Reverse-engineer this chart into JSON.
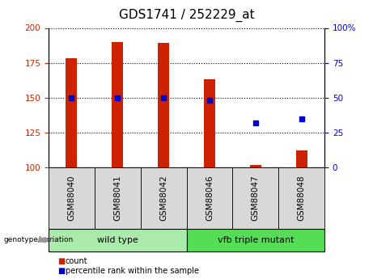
{
  "title": "GDS1741 / 252229_at",
  "categories": [
    "GSM88040",
    "GSM88041",
    "GSM88042",
    "GSM88046",
    "GSM88047",
    "GSM88048"
  ],
  "count_values": [
    178,
    190,
    189,
    163,
    102,
    112
  ],
  "percentile_values": [
    50,
    50,
    50,
    48,
    32,
    35
  ],
  "ylim_left": [
    100,
    200
  ],
  "ylim_right": [
    0,
    100
  ],
  "yticks_left": [
    100,
    125,
    150,
    175,
    200
  ],
  "yticks_right": [
    0,
    25,
    50,
    75,
    100
  ],
  "bar_color": "#cc2200",
  "dot_color": "#0000cc",
  "groups": [
    {
      "label": "wild type",
      "indices": [
        0,
        1,
        2
      ],
      "color": "#aaeaaa"
    },
    {
      "label": "vfb triple mutant",
      "indices": [
        3,
        4,
        5
      ],
      "color": "#55dd55"
    }
  ],
  "group_label_prefix": "genotype/variation",
  "legend_count_label": "count",
  "legend_percentile_label": "percentile rank within the sample",
  "bar_width": 0.25,
  "tick_label_fontsize": 7.5,
  "title_fontsize": 11
}
